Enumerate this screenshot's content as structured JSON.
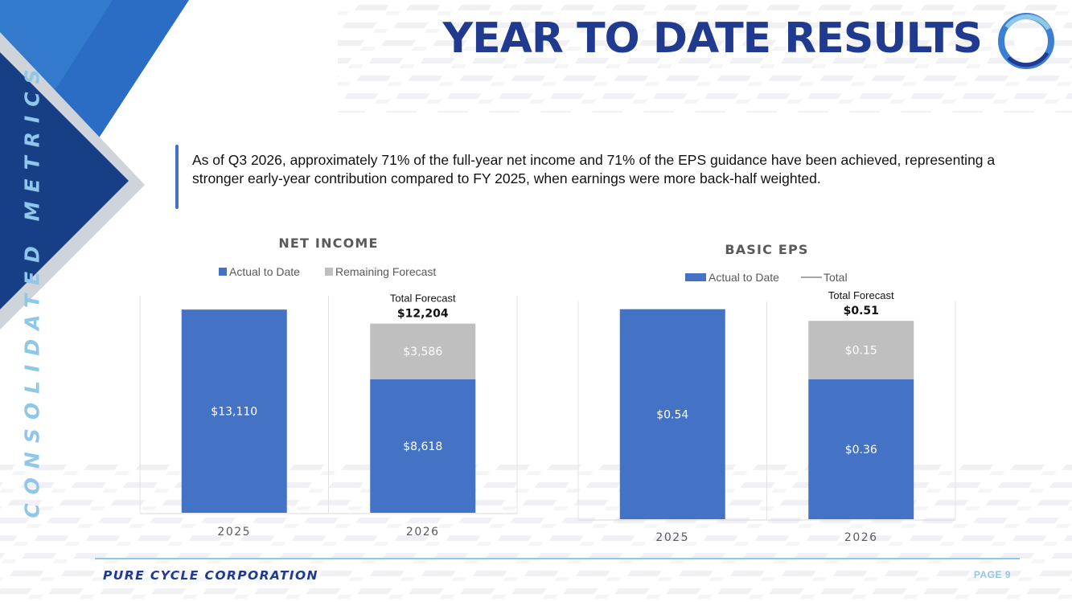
{
  "page": {
    "title": "YEAR TO DATE RESULTS",
    "section_label": "CONSOLIDATED METRICS",
    "callout": "As of Q3 2026, approximately 71% of the full-year net income and 71% of the EPS guidance have been achieved, representing a stronger early-year contribution compared to FY 2025, when earnings were more back-half weighted.",
    "footer_company": "PURE CYCLE CORPORATION",
    "footer_page": "PAGE 9"
  },
  "colors": {
    "primary_blue": "#4472c4",
    "forecast_gray": "#bfbfbf",
    "title_navy": "#1f3a8f",
    "accent_light_blue": "#8ec7e8"
  },
  "chart_data": [
    {
      "type": "bar",
      "stacked": true,
      "title": "NET INCOME",
      "categories": [
        "2025",
        "2026"
      ],
      "series": [
        {
          "name": "Actual to Date",
          "values": [
            13110,
            8618
          ],
          "labels": [
            "$13,110",
            "$8,618"
          ],
          "color": "#4472c4"
        },
        {
          "name": "Remaining Forecast",
          "values": [
            null,
            3586
          ],
          "labels": [
            "",
            "$3,586"
          ],
          "color": "#bfbfbf"
        }
      ],
      "annotation": {
        "category": "2026",
        "label": "Total Forecast",
        "value": "$12,204"
      },
      "legend": [
        "Actual to Date",
        "Remaining Forecast"
      ],
      "legend_position": "top",
      "ylim": [
        0,
        14000
      ],
      "grid": false
    },
    {
      "type": "bar",
      "stacked": true,
      "title": "BASIC EPS",
      "categories": [
        "2025",
        "2026"
      ],
      "series": [
        {
          "name": "Actual to Date",
          "values": [
            0.54,
            0.36
          ],
          "labels": [
            "$0.54",
            "$0.36"
          ],
          "color": "#4472c4"
        },
        {
          "values": [
            null,
            0.15
          ],
          "labels": [
            "",
            "$0.15"
          ],
          "color": "#bfbfbf"
        }
      ],
      "annotation": {
        "category": "2026",
        "label": "Total Forecast",
        "value": "$0.51"
      },
      "legend": [
        "Actual to Date",
        "Total"
      ],
      "legend_position": "top",
      "ylim": [
        0,
        0.56
      ],
      "grid": false
    }
  ]
}
